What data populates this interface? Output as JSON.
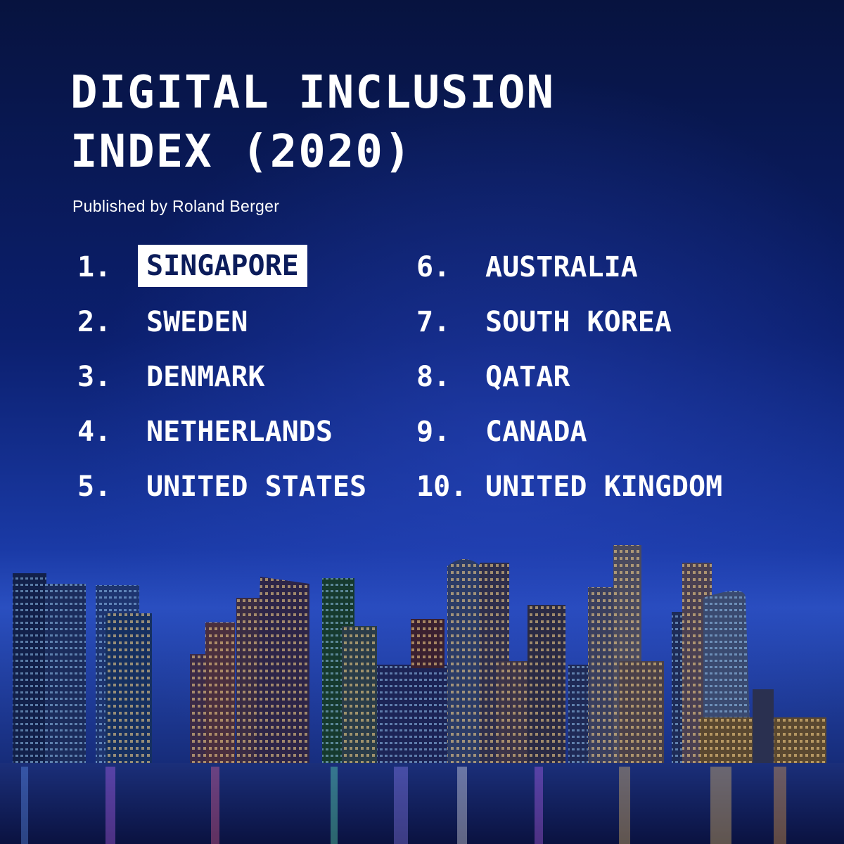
{
  "title_line1": "DIGITAL INCLUSION",
  "title_line2": "INDEX (2020)",
  "subtitle": "Published by Roland Berger",
  "rankings": [
    {
      "rank": "1.",
      "country": "SINGAPORE",
      "highlighted": true
    },
    {
      "rank": "2.",
      "country": "SWEDEN"
    },
    {
      "rank": "3.",
      "country": "DENMARK"
    },
    {
      "rank": "4.",
      "country": "NETHERLANDS"
    },
    {
      "rank": "5.",
      "country": "UNITED STATES"
    },
    {
      "rank": "6.",
      "country": "AUSTRALIA"
    },
    {
      "rank": "7.",
      "country": "SOUTH KOREA"
    },
    {
      "rank": "8.",
      "country": "QATAR"
    },
    {
      "rank": "9.",
      "country": "CANADA"
    },
    {
      "rank": "10.",
      "country": "UNITED KINGDOM"
    }
  ],
  "colors": {
    "sky_top": "#07133f",
    "sky_horizon": "#2a4fc0",
    "text": "#ffffff",
    "highlight_bg": "#ffffff",
    "highlight_text": "#0b1c5a"
  }
}
